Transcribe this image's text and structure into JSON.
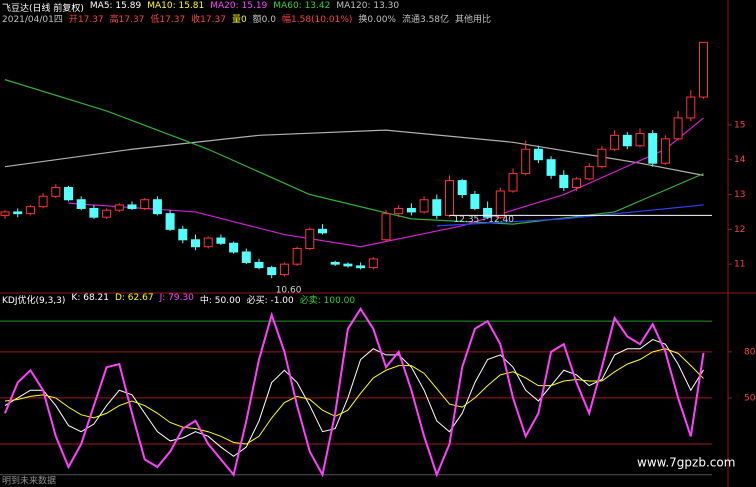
{
  "header": {
    "items": [
      {
        "text": "飞豆达(日线 前复权)",
        "color": "#ffffff"
      },
      {
        "text": "MA5: 15.89",
        "color": "#ffffff"
      },
      {
        "text": "MA10: 15.81",
        "color": "#ffff00"
      },
      {
        "text": "MA20: 15.19",
        "color": "#ff40ff"
      },
      {
        "text": "MA60: 13.42",
        "color": "#30d030"
      },
      {
        "text": "MA120: 13.30",
        "color": "#c0c0c0"
      }
    ],
    "quote": [
      {
        "text": "2021/04/01四",
        "color": "#c0c0c0"
      },
      {
        "text": "开17.37",
        "color": "#ff4040"
      },
      {
        "text": "高17.37",
        "color": "#ff4040"
      },
      {
        "text": "低17.37",
        "color": "#ff4040"
      },
      {
        "text": "收17.37",
        "color": "#ff4040"
      },
      {
        "text": "量0",
        "color": "#ffff00"
      },
      {
        "text": "额0.0",
        "color": "#c0c0c0"
      },
      {
        "text": "幅1.58(10.01%)",
        "color": "#ff4040"
      },
      {
        "text": "换0.00%",
        "color": "#c0c0c0"
      },
      {
        "text": "流通3.58亿",
        "color": "#c0c0c0"
      },
      {
        "text": "其他用比",
        "color": "#c0c0c0"
      }
    ]
  },
  "kdj_header": [
    {
      "text": "KDJ优化(9,3,3)",
      "color": "#ffffff"
    },
    {
      "text": "K: 68.21",
      "color": "#ffffff"
    },
    {
      "text": "D: 62.67",
      "color": "#ffff00"
    },
    {
      "text": "J: 79.30",
      "color": "#ff40ff"
    },
    {
      "text": "中: 50.00",
      "color": "#ffffff"
    },
    {
      "text": "必买: -1.00",
      "color": "#ffffff"
    },
    {
      "text": "必卖: 100.00",
      "color": "#30d030"
    }
  ],
  "chart_data": [
    {
      "type": "candlestick",
      "open": [
        12.4,
        12.5,
        12.45,
        12.65,
        12.95,
        13.2,
        12.85,
        12.6,
        12.35,
        12.55,
        12.7,
        12.6,
        12.85,
        12.45,
        12.0,
        11.7,
        11.5,
        11.75,
        11.6,
        11.35,
        11.05,
        10.9,
        10.7,
        11.0,
        11.45,
        12.0,
        11.05,
        11.0,
        10.95,
        10.9,
        11.7,
        12.45,
        12.6,
        12.5,
        12.85,
        12.4,
        13.4,
        13.0,
        12.6,
        12.35,
        13.1,
        13.6,
        14.3,
        14.0,
        13.55,
        13.2,
        13.45,
        13.8,
        14.3,
        14.7,
        14.4,
        14.75,
        13.9,
        14.6,
        15.2,
        15.8
      ],
      "high": [
        12.55,
        12.6,
        12.7,
        13.05,
        13.3,
        13.25,
        12.95,
        12.7,
        12.6,
        12.75,
        12.8,
        12.9,
        12.95,
        12.55,
        12.1,
        11.85,
        11.8,
        11.85,
        11.65,
        11.45,
        11.15,
        10.95,
        11.05,
        11.5,
        12.05,
        12.15,
        11.1,
        11.05,
        11.05,
        11.2,
        12.55,
        12.7,
        12.75,
        12.95,
        13.0,
        13.55,
        13.45,
        13.1,
        12.8,
        13.2,
        13.75,
        14.55,
        14.4,
        14.1,
        13.7,
        13.5,
        13.9,
        14.4,
        14.85,
        14.8,
        14.9,
        14.85,
        14.7,
        15.4,
        16.0,
        17.37
      ],
      "low": [
        12.3,
        12.35,
        12.4,
        12.6,
        12.9,
        12.8,
        12.55,
        12.3,
        12.3,
        12.5,
        12.55,
        12.55,
        12.4,
        11.95,
        11.6,
        11.4,
        11.45,
        11.55,
        11.3,
        11.0,
        10.85,
        10.6,
        10.65,
        10.95,
        11.4,
        11.85,
        10.95,
        10.9,
        10.85,
        10.85,
        11.65,
        12.35,
        12.4,
        12.45,
        12.3,
        12.35,
        12.9,
        12.55,
        12.3,
        12.3,
        13.05,
        13.55,
        13.9,
        13.45,
        13.1,
        13.1,
        13.4,
        13.75,
        14.25,
        14.3,
        14.35,
        13.8,
        13.85,
        14.55,
        15.1,
        15.75
      ],
      "close": [
        12.5,
        12.45,
        12.65,
        12.95,
        13.2,
        12.85,
        12.6,
        12.35,
        12.55,
        12.7,
        12.6,
        12.85,
        12.45,
        12.0,
        11.7,
        11.5,
        11.75,
        11.6,
        11.35,
        11.05,
        10.9,
        10.7,
        11.0,
        11.45,
        12.0,
        11.9,
        11.0,
        10.95,
        10.9,
        11.15,
        12.45,
        12.6,
        12.5,
        12.85,
        12.4,
        13.4,
        13.0,
        12.6,
        12.35,
        13.1,
        13.6,
        14.3,
        14.0,
        13.55,
        13.2,
        13.45,
        13.8,
        14.3,
        14.7,
        14.4,
        14.75,
        13.9,
        14.6,
        15.2,
        15.8,
        17.37
      ],
      "up_color": "#ff3232",
      "down_color": "#54ffff",
      "ylim": [
        10.2,
        18.3
      ],
      "yticks": [
        11,
        12,
        13,
        14,
        15
      ],
      "lines": [
        {
          "color": "#b0b0b0",
          "x": [
            0,
            10,
            20,
            30,
            40,
            50,
            55
          ],
          "values": [
            13.8,
            14.3,
            14.7,
            14.85,
            14.5,
            13.9,
            13.55
          ]
        },
        {
          "color": "#30b030",
          "x": [
            0,
            8,
            16,
            24,
            32,
            40,
            48,
            55
          ],
          "values": [
            16.3,
            15.4,
            14.3,
            13.0,
            12.3,
            12.15,
            12.5,
            13.6
          ]
        },
        {
          "color": "#d020d0",
          "x": [
            5,
            15,
            22,
            28,
            36,
            44,
            52,
            55
          ],
          "values": [
            12.75,
            12.5,
            11.85,
            11.5,
            12.1,
            13.0,
            14.3,
            15.2
          ]
        },
        {
          "color": "#3040ff",
          "x": [
            34,
            44,
            55
          ],
          "values": [
            12.1,
            12.3,
            12.7
          ]
        }
      ],
      "annotations": [
        {
          "text": "12.35 - 12.40",
          "x": 35,
          "y": 12.4
        },
        {
          "text": "10.60",
          "x": 21,
          "y": 10.6
        }
      ]
    },
    {
      "type": "line",
      "series": [
        {
          "color": "#ffffff",
          "values": [
            45,
            50,
            55,
            55,
            45,
            32,
            28,
            33,
            45,
            55,
            52,
            40,
            28,
            22,
            24,
            28,
            25,
            18,
            12,
            18,
            35,
            60,
            68,
            60,
            45,
            28,
            30,
            50,
            75,
            82,
            78,
            78,
            70,
            55,
            35,
            28,
            40,
            60,
            75,
            78,
            70,
            55,
            48,
            58,
            68,
            65,
            58,
            62,
            78,
            82,
            82,
            88,
            85,
            72,
            55,
            68.21
          ]
        },
        {
          "color": "#ffff00",
          "values": [
            48,
            49,
            51,
            52,
            50,
            44,
            39,
            37,
            40,
            45,
            48,
            45,
            40,
            34,
            31,
            30,
            28,
            25,
            21,
            20,
            25,
            37,
            47,
            51,
            49,
            42,
            38,
            42,
            53,
            63,
            68,
            71,
            71,
            66,
            56,
            46,
            44,
            50,
            58,
            65,
            67,
            63,
            58,
            58,
            61,
            62,
            61,
            61,
            67,
            72,
            75,
            80,
            82,
            79,
            71,
            62.67
          ]
        },
        {
          "color": "#ff40ff",
          "values": [
            40,
            60,
            68,
            55,
            25,
            5,
            20,
            45,
            70,
            72,
            40,
            10,
            5,
            15,
            30,
            35,
            20,
            10,
            0,
            35,
            75,
            104,
            80,
            45,
            15,
            0,
            40,
            95,
            108,
            95,
            70,
            80,
            55,
            25,
            0,
            20,
            70,
            95,
            100,
            85,
            50,
            25,
            40,
            80,
            85,
            60,
            40,
            70,
            102,
            90,
            85,
            98,
            80,
            50,
            25,
            79.3
          ]
        }
      ],
      "ylim": [
        -8,
        117
      ],
      "yticks": [
        50,
        80
      ],
      "levels": [
        {
          "value": 100,
          "color": "#1f9a1f"
        },
        {
          "value": 80,
          "color": "#a01818"
        },
        {
          "value": 50,
          "color": "#a01818"
        },
        {
          "value": 20,
          "color": "#a01818"
        },
        {
          "value": 0,
          "color": "#555555"
        }
      ]
    }
  ],
  "footer": {
    "left": "明到未来数据",
    "watermark": "www.7gpzb.com"
  }
}
